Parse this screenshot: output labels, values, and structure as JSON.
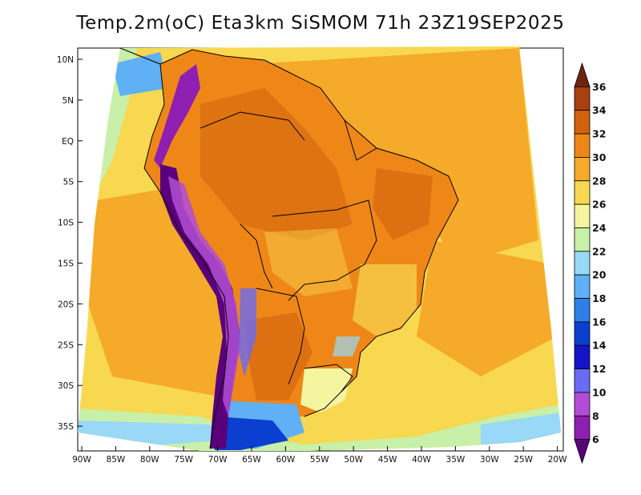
{
  "title": "Temp.2m(oC) Eta3km SiSMOM 71h 23Z19SEP2025",
  "map": {
    "variable": "2 m air temperature",
    "units": "oC",
    "lat_ticks": [
      "10N",
      "5N",
      "EQ",
      "5S",
      "10S",
      "15S",
      "20S",
      "25S",
      "30S",
      "35S"
    ],
    "lon_ticks": [
      "90W",
      "85W",
      "80W",
      "75W",
      "70W",
      "65W",
      "60W",
      "55W",
      "50W",
      "45W",
      "40W",
      "35W",
      "30W",
      "25W",
      "20W"
    ]
  },
  "colorbar": {
    "labels": [
      "6",
      "8",
      "10",
      "12",
      "14",
      "16",
      "18",
      "20",
      "22",
      "24",
      "26",
      "28",
      "30",
      "32",
      "34",
      "36"
    ],
    "colors": [
      "#5a007a",
      "#8f1fb0",
      "#b24dd6",
      "#6a6af5",
      "#1515c8",
      "#0a3fd0",
      "#2e7fe8",
      "#5fb0f5",
      "#99d8f7",
      "#c8f0a8",
      "#f5f5a0",
      "#f8d850",
      "#f5aa2a",
      "#ee8718",
      "#d2620e",
      "#a84010",
      "#6e2410"
    ]
  },
  "colors": {
    "ocean_warm": "#f5aa2a",
    "ocean_mid": "#f8d850",
    "land_hot": "#ee8718",
    "andes_cold": "#5a007a",
    "border": "#000000"
  }
}
